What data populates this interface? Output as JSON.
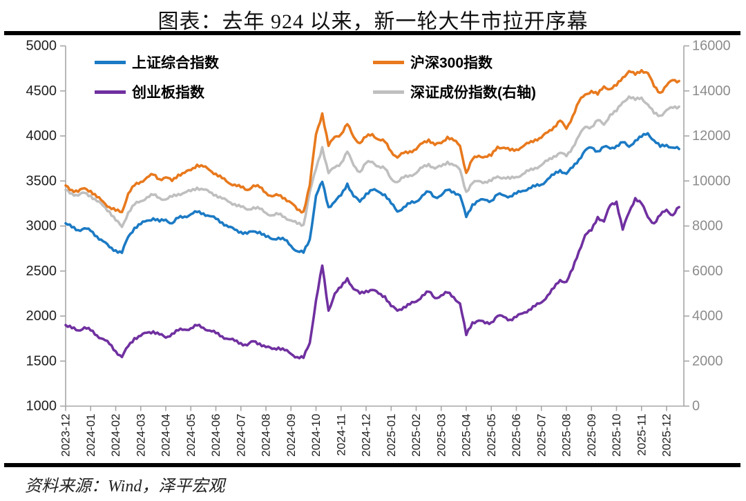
{
  "title": "图表：去年 924 以来，新一轮大牛市拉开序幕",
  "footer": "资料来源：Wind，泽平宏观",
  "chart_data": {
    "type": "line",
    "title": "图表：去年 924 以来，新一轮大牛市拉开序幕",
    "legend_position": "top",
    "grid": false,
    "x_label_rotation": 90,
    "x_labels": [
      "2023-12",
      "2024-01",
      "2024-02",
      "2024-03",
      "2024-04",
      "2024-05",
      "2024-06",
      "2024-07",
      "2024-08",
      "2024-09",
      "2024-10",
      "2024-11",
      "2024-12",
      "2025-01",
      "2025-02",
      "2025-03",
      "2025-04",
      "2025-05",
      "2025-06",
      "2025-07",
      "2025-08",
      "2025-09",
      "2025-10",
      "2025-11",
      "2025-12"
    ],
    "sampling": {
      "start_month": "2023-12",
      "points_per_month": 4,
      "step_months": 0.25
    },
    "left_axis": {
      "min": 1000,
      "max": 5000,
      "ticks": [
        5000,
        4500,
        4000,
        3500,
        3000,
        2500,
        2000,
        1500,
        1000
      ]
    },
    "right_axis": {
      "min": 0,
      "max": 16000,
      "ticks": [
        16000,
        14000,
        12000,
        10000,
        8000,
        6000,
        4000,
        2000,
        0
      ]
    },
    "colors": {
      "axis_line": "#a6a6a6",
      "tick_left_text": "#1f1f1f",
      "tick_right_text": "#8c8c8c"
    },
    "series": [
      {
        "name": "上证综合指数",
        "axis": "left",
        "color": "#1b7ac4",
        "values": [
          3030,
          2985,
          2955,
          2975,
          2945,
          2885,
          2830,
          2765,
          2730,
          2702,
          2880,
          2980,
          3020,
          3060,
          3085,
          3050,
          3070,
          3030,
          3090,
          3105,
          3130,
          3155,
          3140,
          3110,
          3080,
          3040,
          2990,
          2960,
          2935,
          2915,
          2940,
          2935,
          2880,
          2855,
          2870,
          2845,
          2780,
          2720,
          2704,
          2850,
          3336,
          3490,
          3210,
          3270,
          3340,
          3470,
          3330,
          3270,
          3360,
          3400,
          3380,
          3350,
          3250,
          3160,
          3210,
          3250,
          3270,
          3340,
          3380,
          3320,
          3340,
          3400,
          3380,
          3340,
          3100,
          3240,
          3280,
          3290,
          3280,
          3350,
          3340,
          3330,
          3360,
          3390,
          3420,
          3440,
          3460,
          3520,
          3570,
          3620,
          3580,
          3650,
          3740,
          3840,
          3870,
          3830,
          3880,
          3860,
          3890,
          3930,
          3880,
          3950,
          3990,
          4030,
          3950,
          3880,
          3900,
          3870,
          3855
        ]
      },
      {
        "name": "沪深300指数",
        "axis": "left",
        "color": "#e8791d",
        "values": [
          3450,
          3400,
          3380,
          3420,
          3390,
          3320,
          3270,
          3210,
          3170,
          3155,
          3360,
          3450,
          3490,
          3540,
          3570,
          3520,
          3540,
          3500,
          3570,
          3590,
          3620,
          3680,
          3660,
          3620,
          3580,
          3530,
          3480,
          3460,
          3430,
          3400,
          3450,
          3430,
          3370,
          3330,
          3340,
          3310,
          3260,
          3180,
          3160,
          3450,
          4018,
          4250,
          3890,
          3990,
          4020,
          4130,
          3990,
          3920,
          3990,
          4020,
          3960,
          3935,
          3830,
          3760,
          3810,
          3830,
          3850,
          3920,
          3960,
          3900,
          3920,
          3990,
          3950,
          3890,
          3590,
          3740,
          3780,
          3770,
          3780,
          3880,
          3870,
          3840,
          3850,
          3880,
          3920,
          3960,
          3980,
          4040,
          4100,
          4170,
          4080,
          4220,
          4380,
          4460,
          4500,
          4460,
          4550,
          4520,
          4560,
          4650,
          4720,
          4680,
          4730,
          4700,
          4550,
          4480,
          4560,
          4620,
          4610
        ]
      },
      {
        "name": "创业板指数",
        "axis": "left",
        "color": "#7030a0",
        "values": [
          1900,
          1865,
          1840,
          1875,
          1840,
          1785,
          1745,
          1690,
          1610,
          1545,
          1665,
          1755,
          1780,
          1815,
          1830,
          1795,
          1760,
          1805,
          1840,
          1850,
          1865,
          1895,
          1870,
          1840,
          1810,
          1775,
          1745,
          1725,
          1700,
          1675,
          1720,
          1695,
          1655,
          1635,
          1650,
          1620,
          1580,
          1545,
          1536,
          1700,
          2175,
          2560,
          2060,
          2250,
          2320,
          2420,
          2300,
          2250,
          2280,
          2290,
          2250,
          2220,
          2110,
          2060,
          2100,
          2130,
          2160,
          2230,
          2270,
          2200,
          2230,
          2260,
          2210,
          2140,
          1790,
          1930,
          1950,
          1920,
          1930,
          2000,
          1990,
          1960,
          1990,
          2030,
          2070,
          2110,
          2150,
          2230,
          2310,
          2400,
          2380,
          2520,
          2720,
          2900,
          2950,
          3100,
          3050,
          3230,
          3270,
          2960,
          3150,
          3310,
          3250,
          3100,
          3030,
          3120,
          3180,
          3120,
          3210
        ]
      },
      {
        "name": "深证成份指数(右轴)",
        "axis": "right",
        "color": "#bfbfbf",
        "values": [
          9600,
          9450,
          9350,
          9470,
          9350,
          9100,
          8900,
          8650,
          8250,
          7960,
          8600,
          8950,
          9100,
          9280,
          9380,
          9250,
          9180,
          9300,
          9420,
          9480,
          9550,
          9700,
          9620,
          9500,
          9380,
          9220,
          9080,
          8980,
          8850,
          8730,
          8830,
          8760,
          8580,
          8480,
          8520,
          8400,
          8250,
          8100,
          8050,
          9500,
          10530,
          11500,
          10350,
          10600,
          10800,
          11300,
          10700,
          10400,
          10800,
          10850,
          10650,
          10550,
          10100,
          9950,
          10150,
          10250,
          10350,
          10600,
          10750,
          10550,
          10650,
          10850,
          10700,
          10500,
          9520,
          9900,
          10000,
          9960,
          10000,
          10200,
          10150,
          10100,
          10180,
          10300,
          10450,
          10580,
          10700,
          10900,
          11100,
          11250,
          11100,
          11500,
          12000,
          12400,
          12400,
          12700,
          12500,
          12950,
          13100,
          13500,
          13750,
          13600,
          13700,
          13400,
          13000,
          12900,
          13150,
          13250,
          13300
        ]
      }
    ]
  }
}
